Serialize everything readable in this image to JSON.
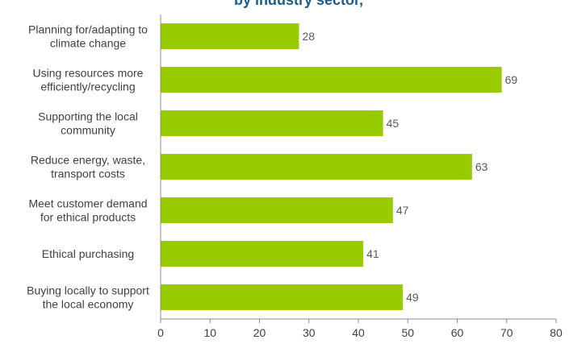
{
  "page": {
    "top_title_fragment": "by industry sector,"
  },
  "chart_data": {
    "type": "bar",
    "orientation": "horizontal",
    "categories": [
      [
        "Planning for/adapting to",
        "climate change"
      ],
      [
        "Using resources more",
        "efficiently/recycling"
      ],
      [
        "Supporting the local",
        "community"
      ],
      [
        "Reduce energy, waste,",
        "transport costs"
      ],
      [
        "Meet customer demand",
        "for ethical products"
      ],
      [
        "Ethical purchasing"
      ],
      [
        "Buying locally to support",
        "the local economy"
      ]
    ],
    "values": [
      28,
      69,
      45,
      63,
      47,
      41,
      49
    ],
    "xlim": [
      0,
      80
    ],
    "xticks": [
      0,
      10,
      20,
      30,
      40,
      50,
      60,
      70,
      80
    ],
    "bar_color": "#99cc00",
    "grid": false,
    "data_labels": true
  }
}
